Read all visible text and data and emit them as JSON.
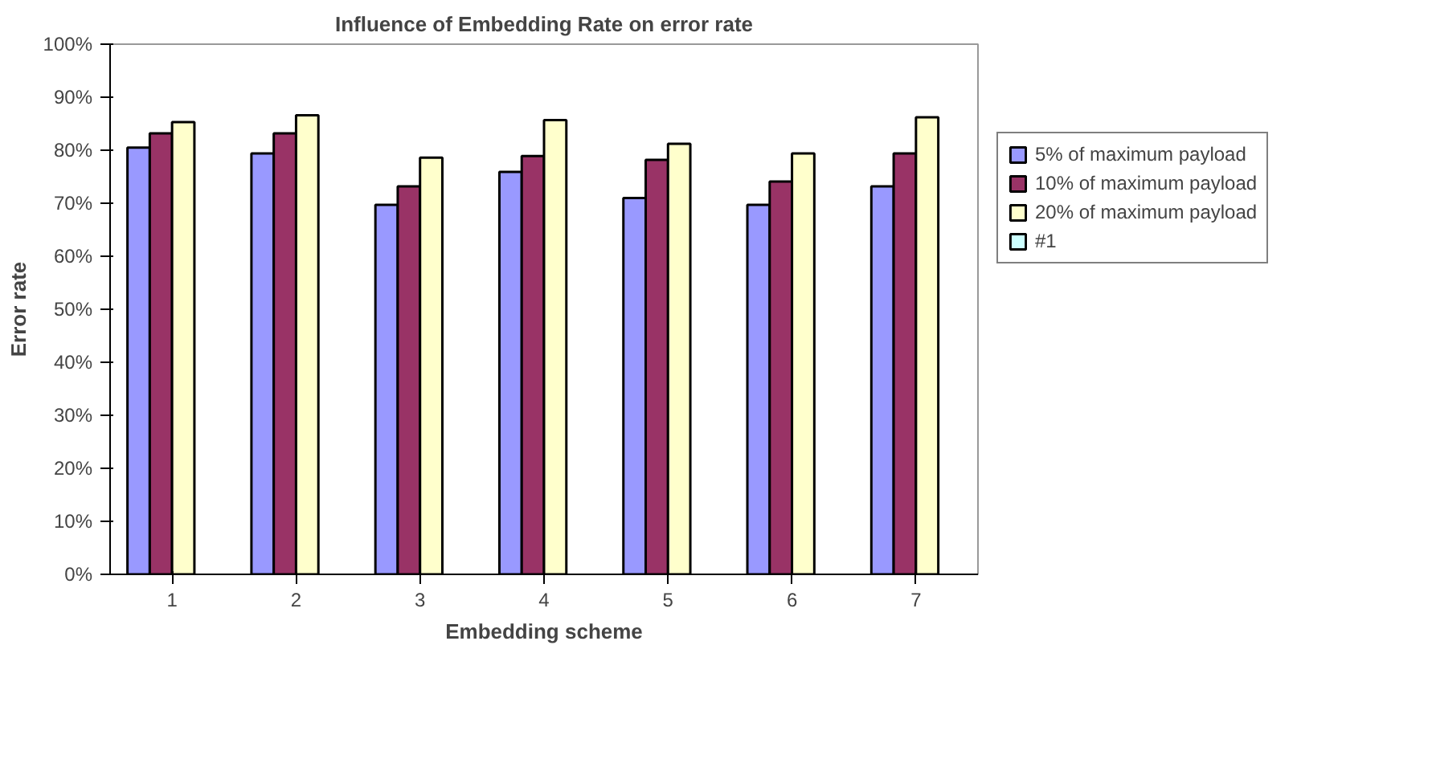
{
  "chart_data": {
    "type": "bar",
    "title": "Influence of Embedding Rate on error rate",
    "xlabel": "Embedding scheme",
    "ylabel": "Error rate",
    "categories": [
      "1",
      "2",
      "3",
      "4",
      "5",
      "6",
      "7"
    ],
    "series": [
      {
        "name": "5% of maximum payload",
        "color": "#9999ff",
        "values": [
          80.5,
          79.4,
          69.7,
          75.9,
          71.0,
          69.7,
          73.2
        ]
      },
      {
        "name": "10% of maximum payload",
        "color": "#993366",
        "values": [
          83.2,
          83.2,
          73.2,
          78.9,
          78.2,
          74.1,
          79.4
        ]
      },
      {
        "name": "20% of maximum payload",
        "color": "#ffffcc",
        "values": [
          85.3,
          86.6,
          78.6,
          85.7,
          81.2,
          79.4,
          86.2
        ]
      },
      {
        "name": "#1",
        "color": "#ccffff",
        "values": [
          null,
          null,
          null,
          null,
          null,
          null,
          null
        ]
      }
    ],
    "ylim": [
      0,
      100
    ],
    "yticks": [
      {
        "value": 0,
        "label": "0%"
      },
      {
        "value": 10,
        "label": "10%"
      },
      {
        "value": 20,
        "label": "20%"
      },
      {
        "value": 30,
        "label": "30%"
      },
      {
        "value": 40,
        "label": "40%"
      },
      {
        "value": 50,
        "label": "50%"
      },
      {
        "value": 60,
        "label": "60%"
      },
      {
        "value": 70,
        "label": "70%"
      },
      {
        "value": 80,
        "label": "80%"
      },
      {
        "value": 90,
        "label": "90%"
      },
      {
        "value": 100,
        "label": "100%"
      }
    ],
    "grid": false,
    "legend": "right"
  }
}
